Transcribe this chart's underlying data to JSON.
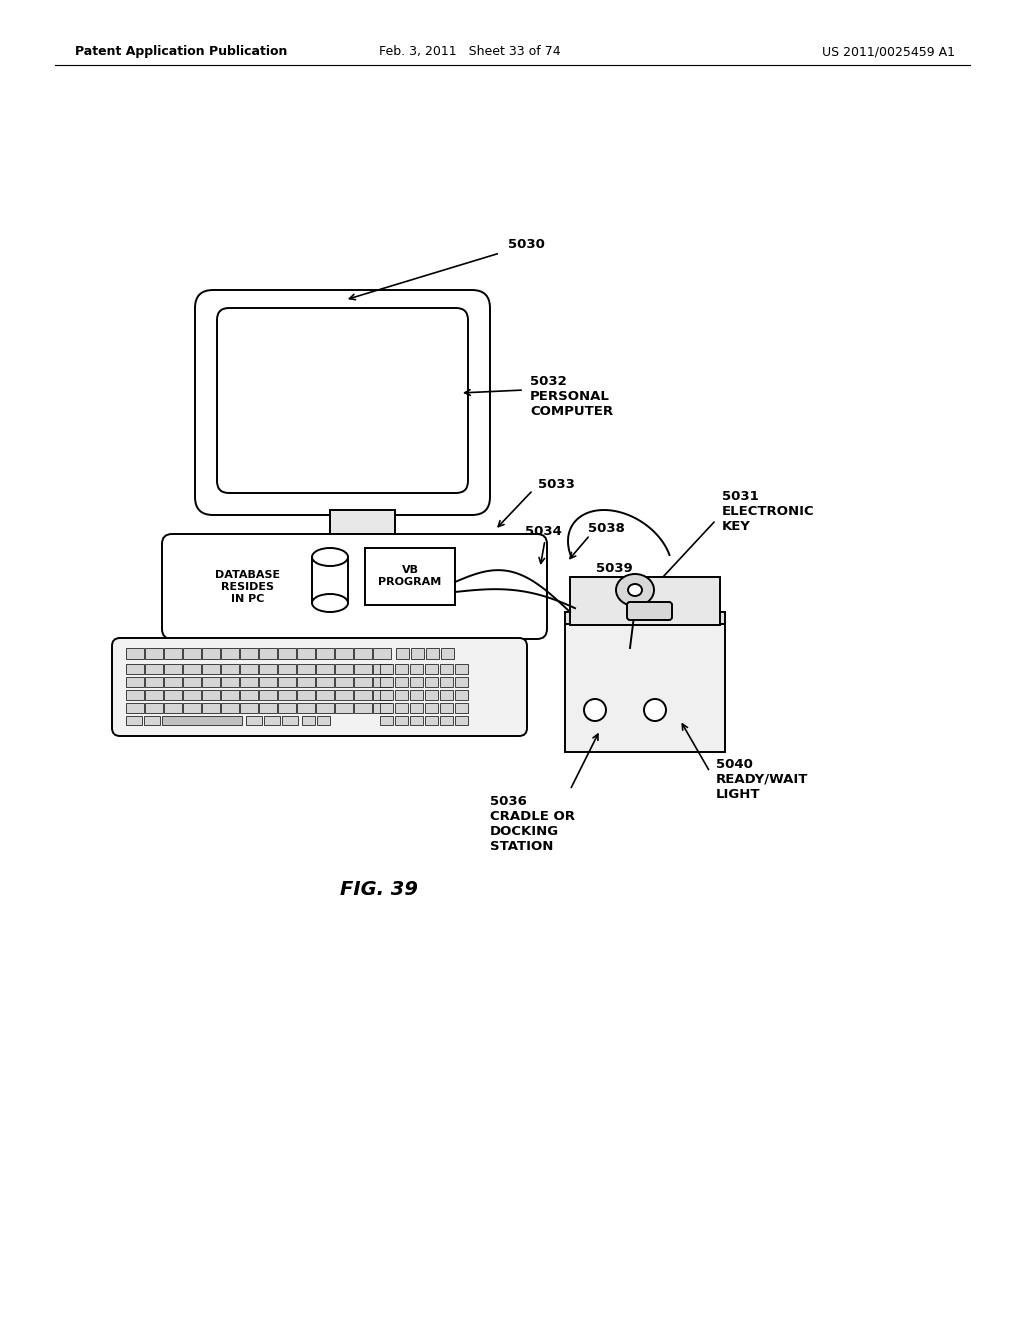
{
  "background_color": "#ffffff",
  "header_left": "Patent Application Publication",
  "header_center": "Feb. 3, 2011   Sheet 33 of 74",
  "header_right": "US 2011/0025459 A1",
  "figure_label": "FIG. 39"
}
